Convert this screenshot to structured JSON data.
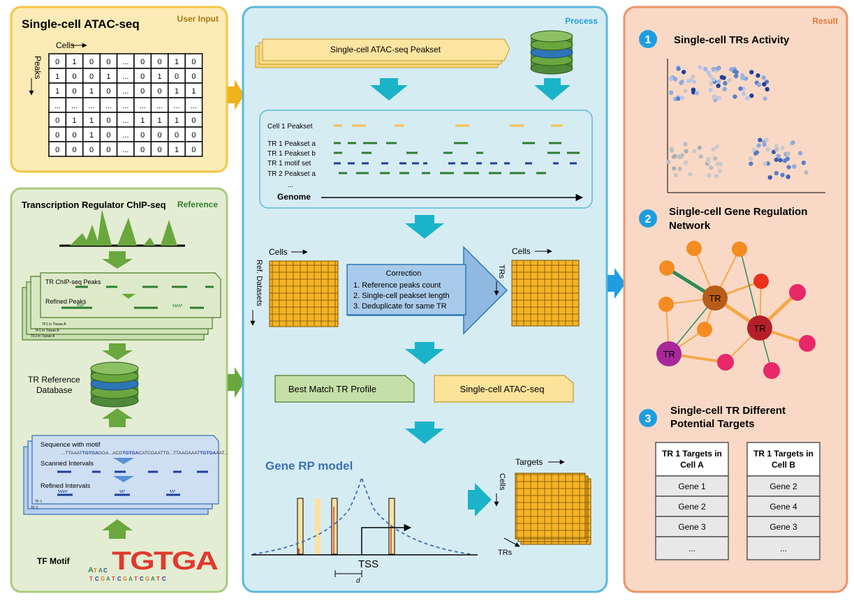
{
  "panels": {
    "user_input": {
      "tag": "User Input",
      "title": "Single-cell ATAC-seq",
      "cells_label": "Cells",
      "peaks_label": "Peaks",
      "matrix": [
        [
          "0",
          "1",
          "0",
          "0",
          "...",
          "0",
          "0",
          "1",
          "0"
        ],
        [
          "1",
          "0",
          "0",
          "1",
          "...",
          "0",
          "1",
          "0",
          "0"
        ],
        [
          "1",
          "0",
          "1",
          "0",
          "...",
          "0",
          "0",
          "1",
          "1"
        ],
        [
          "...",
          "...",
          "...",
          "...",
          "...",
          "...",
          "...",
          "...",
          "..."
        ],
        [
          "0",
          "1",
          "1",
          "0",
          "...",
          "1",
          "1",
          "1",
          "0"
        ],
        [
          "0",
          "0",
          "1",
          "0",
          "...",
          "0",
          "0",
          "0",
          "0"
        ],
        [
          "0",
          "0",
          "0",
          "0",
          "...",
          "0",
          "0",
          "1",
          "0"
        ]
      ]
    },
    "reference": {
      "tag": "Reference",
      "title": "Transcription Regulator ChIP-seq",
      "chip_peaks_label": "TR ChIP-seq Peaks",
      "refined_peaks_label": "Refined Peaks",
      "stack_labels": [
        "TF1 in Tissue A",
        "TF1 in Tissue B",
        "TF2 in Tissue A"
      ],
      "db_label_line1": "TR Reference",
      "db_label_line2": "Database",
      "seq_label": "Sequence with motif",
      "seq_text_a": "...TTAAAT",
      "seq_text_b": "TGTGA",
      "seq_text_c": "GGA...ACG",
      "seq_text_d": "TGTGA",
      "seq_text_e": "CATCGAATTG...TTAAGAAAT",
      "seq_text_f": "TGTGA",
      "seq_text_g": "AAT...",
      "scanned_label": "Scanned Intervals",
      "refined_intervals_label": "Refined Intervals",
      "stack2_labels": [
        "TF 1",
        "TF 2"
      ],
      "motif_label": "TF Motif",
      "motif_letters": "TGTGA"
    },
    "process": {
      "tag": "Process",
      "peakset_label": "Single-cell ATAC-seq Peakset",
      "genome_rows": [
        "Cell 1 Peakset",
        "TR 1 Peakset a",
        "TR 1 Peakset b",
        "TR 1 motif set",
        "TR 2 Peakset a",
        "..."
      ],
      "genome_label": "Genome",
      "left_cells_label": "Cells",
      "left_rows_label": "Ref. Datasets",
      "correction_title": "Correction",
      "correction_items": [
        "1. Reference peaks count",
        "2. Single-cell peakset length",
        "3. Deduplicate for same TR"
      ],
      "right_cells_label": "Cells",
      "right_rows_label": "TRs",
      "best_match_label": "Best Match TR Profile",
      "scatac_label": "Single-cell ATAC-seq",
      "rp_title": "Gene RP model",
      "tss_label": "TSS",
      "d_label": "d",
      "targets_label": "Targets",
      "cells_label3": "Cells",
      "trs_label3": "TRs"
    },
    "result": {
      "tag": "Result",
      "item1_num": "1",
      "item1_title": "Single-cell TRs Activity",
      "item2_num": "2",
      "item2_title_line1": "Single-cell Gene Regulation",
      "item2_title_line2": "Network",
      "tr_node_label": "TR",
      "item3_num": "3",
      "item3_title_line1": "Single-cell TR Different",
      "item3_title_line2": "Potential Targets",
      "table_a": {
        "header_line1": "TR 1 Targets in",
        "header_line2": "Cell A",
        "rows": [
          "Gene 1",
          "Gene 2",
          "Gene 3",
          "..."
        ]
      },
      "table_b": {
        "header_line1": "TR 1 Targets in",
        "header_line2": "Cell B",
        "rows": [
          "Gene 2",
          "Gene 4",
          "Gene 3",
          "..."
        ]
      }
    }
  },
  "colors": {
    "input_bg": "#FCEBB6",
    "input_border": "#F5C542",
    "reference_bg": "#E3EDD3",
    "reference_border": "#A9CB7E",
    "process_bg": "#D6ECF3",
    "process_border": "#5BB8DE",
    "result_bg": "#F9D9C6",
    "result_border": "#EF9366",
    "teal_arrow": "#1BB3C8",
    "green_arrow": "#6AA73E",
    "orange_arrow": "#F2B21B",
    "badge_blue": "#1E9EE0",
    "grid_orange": "#F5A623"
  }
}
